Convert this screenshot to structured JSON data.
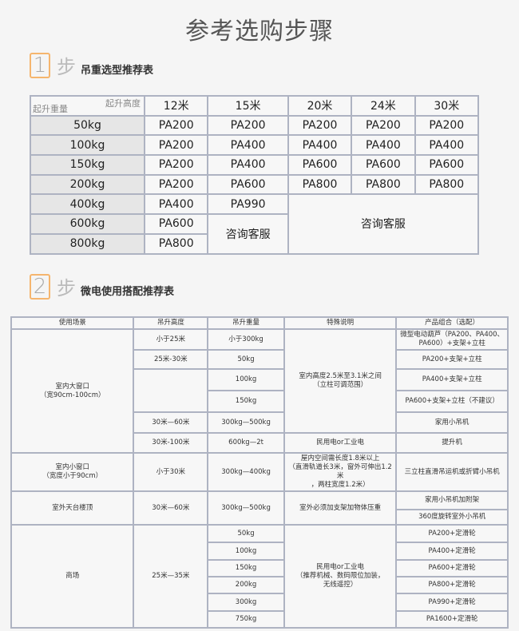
{
  "page_title": "参考选购步骤",
  "step1": {
    "number": "1",
    "step_char": "步",
    "label": "吊重选型推荐表"
  },
  "step2": {
    "number": "2",
    "step_char": "步",
    "label": "微电使用搭配推荐表"
  },
  "table1": {
    "corner_top": "起升高度",
    "corner_bottom": "起升重量",
    "headers": [
      "12米",
      "15米",
      "20米",
      "24米",
      "30米"
    ],
    "rows": [
      {
        "label": "50kg",
        "cells": [
          {
            "text": "PA200"
          },
          {
            "text": "PA200"
          },
          {
            "text": "PA200"
          },
          {
            "text": "PA200"
          },
          {
            "text": "PA200"
          }
        ]
      },
      {
        "label": "100kg",
        "cells": [
          {
            "text": "PA200"
          },
          {
            "text": "PA400"
          },
          {
            "text": "PA400"
          },
          {
            "text": "PA400"
          },
          {
            "text": "PA400"
          }
        ]
      },
      {
        "label": "150kg",
        "cells": [
          {
            "text": "PA200"
          },
          {
            "text": "PA400"
          },
          {
            "text": "PA600"
          },
          {
            "text": "PA600"
          },
          {
            "text": "PA600"
          }
        ]
      },
      {
        "label": "200kg",
        "cells": [
          {
            "text": "PA200"
          },
          {
            "text": "PA600"
          },
          {
            "text": "PA800"
          },
          {
            "text": "PA800"
          },
          {
            "text": "PA800"
          }
        ]
      },
      {
        "label": "400kg",
        "cells": [
          {
            "text": "PA400"
          },
          {
            "text": "PA990"
          },
          {
            "text": "咨询客服",
            "rowspan": 3,
            "colspan": 3
          }
        ]
      },
      {
        "label": "600kg",
        "cells": [
          {
            "text": "PA600"
          },
          {
            "text": "咨询客服",
            "rowspan": 2
          }
        ]
      },
      {
        "label": "800kg",
        "cells": [
          {
            "text": "PA800"
          }
        ]
      }
    ]
  },
  "table2": {
    "headers": [
      "使用场景",
      "吊升高度",
      "吊升重量",
      "特殊说明",
      "产品组合（选配）"
    ],
    "rows": [
      [
        {
          "text": "室内大窗口\n（宽90cm-100cm）",
          "rowspan": 6
        },
        {
          "text": "小于25米"
        },
        {
          "text": "小于300kg"
        },
        {
          "text": "室内高度2.5米至3.1米之间\n（立柱可调范围）",
          "rowspan": 5
        },
        {
          "text": "微型电动葫芦（PA200、PA400、PA600）+支架+立柱"
        }
      ],
      [
        {
          "text": "25米-30米"
        },
        {
          "text": "50kg"
        },
        {
          "text": "PA200+支架+立柱"
        }
      ],
      [
        {
          "text": "",
          "rowspan": 2
        },
        {
          "text": "100kg"
        },
        {
          "text": "PA400+支架+立柱"
        }
      ],
      [
        {
          "text": "150kg"
        },
        {
          "text": "PA600+支架+立柱（不建议）"
        }
      ],
      [
        {
          "text": "30米—60米"
        },
        {
          "text": "300kg—500kg"
        },
        {
          "text": "家用小吊机"
        }
      ],
      [
        {
          "text": "30米-100米"
        },
        {
          "text": "600kg—2t"
        },
        {
          "text": "民用电or工业电"
        },
        {
          "text": "提升机"
        }
      ],
      [
        {
          "text": "室内小窗口\n（宽度小于90cm）"
        },
        {
          "text": "小于30米"
        },
        {
          "text": "300kg—400kg"
        },
        {
          "text": "屋内空间需长度1.8米以上\n（直滑轨道长3米，窗外可伸出1.2米\n，两柱宽度1.2米）"
        },
        {
          "text": "三立柱直滑吊运机或折臂小吊机"
        }
      ],
      [
        {
          "text": "室外天台楼顶",
          "rowspan": 2
        },
        {
          "text": "30米—60米",
          "rowspan": 2
        },
        {
          "text": "300kg—500kg",
          "rowspan": 2
        },
        {
          "text": "室外必须加支架加物体压重",
          "rowspan": 2
        },
        {
          "text": "家用小吊机加附架"
        }
      ],
      [
        {
          "text": "360度旋转室外小吊机"
        }
      ],
      [
        {
          "text": "商场",
          "rowspan": 6
        },
        {
          "text": "25米—35米",
          "rowspan": 6
        },
        {
          "text": "50kg"
        },
        {
          "text": "民用电or工业电\n（推荐机械、数码限位加装，\n无线遥控）",
          "rowspan": 6
        },
        {
          "text": "PA200+定滑轮"
        }
      ],
      [
        {
          "text": "100kg"
        },
        {
          "text": "PA400+定滑轮"
        }
      ],
      [
        {
          "text": "150kg"
        },
        {
          "text": "PA600+定滑轮"
        }
      ],
      [
        {
          "text": "200kg"
        },
        {
          "text": "PA800+定滑轮"
        }
      ],
      [
        {
          "text": "300kg"
        },
        {
          "text": "PA990+定滑轮"
        }
      ],
      [
        {
          "text": "750kg"
        },
        {
          "text": "PA1600+定滑轮"
        }
      ]
    ]
  }
}
